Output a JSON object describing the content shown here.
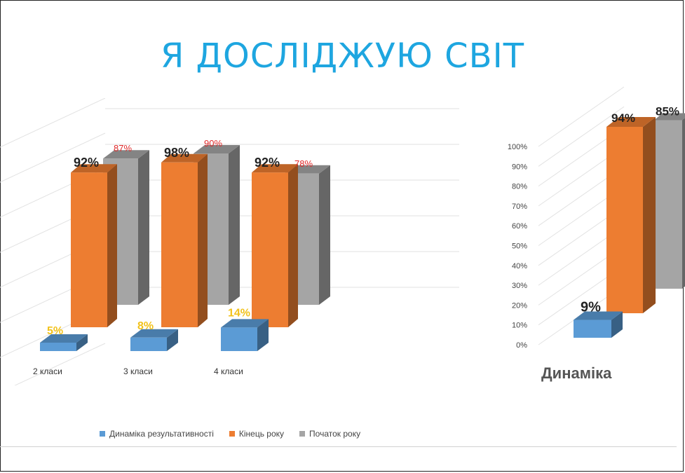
{
  "slide": {
    "title": "Я ДОСЛІДЖУЮ СВІТ"
  },
  "colors": {
    "blue": "#5b9bd5",
    "orange": "#ed7d31",
    "gray": "#a5a5a5",
    "title": "#1ea6e0"
  },
  "chart_data": [
    {
      "type": "bar",
      "categories": [
        "2 класи",
        "3 класи",
        "4 класи"
      ],
      "series": [
        {
          "name": "Динаміка результативності",
          "values": [
            5,
            8,
            14
          ],
          "labels": [
            "5%",
            "8%",
            "14%"
          ]
        },
        {
          "name": "Кінець року",
          "values": [
            92,
            98,
            92
          ],
          "labels": [
            "92%",
            "98%",
            "92%"
          ]
        },
        {
          "name": "Початок року",
          "values": [
            87,
            90,
            78
          ],
          "labels": [
            "87%",
            "90%",
            "78%"
          ]
        }
      ],
      "legend": {
        "position": "bottom",
        "items": [
          "Динаміка результативності",
          "Кінець року",
          "Початок року"
        ]
      },
      "ylim": [
        0,
        100
      ],
      "grid": true
    },
    {
      "type": "bar",
      "title": "Динаміка",
      "series": [
        {
          "name": "Динаміка результативності",
          "values": [
            9
          ],
          "labels": [
            "9%"
          ]
        },
        {
          "name": "Кінець року",
          "values": [
            94
          ],
          "labels": [
            "94%"
          ]
        },
        {
          "name": "Початок року",
          "values": [
            85
          ],
          "labels": [
            "85%"
          ]
        }
      ],
      "yticks": [
        "0%",
        "10%",
        "20%",
        "30%",
        "40%",
        "50%",
        "60%",
        "70%",
        "80%",
        "90%",
        "100%"
      ],
      "ylim": [
        0,
        100
      ],
      "grid": true
    }
  ]
}
